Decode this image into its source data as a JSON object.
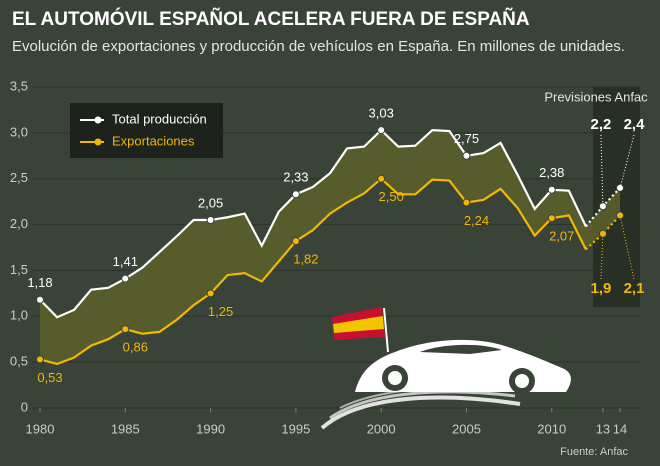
{
  "chart_data": {
    "type": "line",
    "title": "EL AUTOMÓVIL ESPAÑOL ACELERA FUERA DE ESPAÑA",
    "subtitle": "Evolución de exportaciones y producción de vehículos en España. En millones de unidades.",
    "annotation": "Previsiones Anfac",
    "source": "Fuente: Anfac",
    "x": [
      1980,
      1981,
      1982,
      1983,
      1984,
      1985,
      1986,
      1987,
      1988,
      1989,
      1990,
      1991,
      1992,
      1993,
      1994,
      1995,
      1996,
      1997,
      1998,
      1999,
      2000,
      2001,
      2002,
      2003,
      2004,
      2005,
      2006,
      2007,
      2008,
      2009,
      2010,
      2011,
      2012,
      2013,
      2014
    ],
    "series": [
      {
        "name": "Total producción",
        "color": "#ffffff",
        "values": [
          1.18,
          0.99,
          1.07,
          1.29,
          1.31,
          1.41,
          1.53,
          1.7,
          1.87,
          2.05,
          2.05,
          2.08,
          2.12,
          1.77,
          2.14,
          2.33,
          2.41,
          2.56,
          2.83,
          2.85,
          3.03,
          2.85,
          2.86,
          3.03,
          3.02,
          2.75,
          2.78,
          2.89,
          2.54,
          2.17,
          2.38,
          2.37,
          1.98,
          2.2,
          2.4
        ],
        "value_labels": [
          "1,18",
          null,
          null,
          null,
          null,
          "1,41",
          null,
          null,
          null,
          null,
          "2,05",
          null,
          null,
          null,
          null,
          "2,33",
          null,
          null,
          null,
          null,
          "3,03",
          null,
          null,
          null,
          null,
          "2,75",
          null,
          null,
          null,
          null,
          "2,38",
          null,
          null,
          "2,2",
          "2,4"
        ]
      },
      {
        "name": "Exportaciones",
        "color": "#f2b705",
        "values": [
          0.53,
          0.48,
          0.55,
          0.68,
          0.75,
          0.86,
          0.81,
          0.83,
          0.96,
          1.12,
          1.25,
          1.45,
          1.47,
          1.38,
          1.6,
          1.82,
          1.94,
          2.12,
          2.24,
          2.34,
          2.5,
          2.33,
          2.33,
          2.49,
          2.48,
          2.24,
          2.27,
          2.39,
          2.18,
          1.88,
          2.07,
          2.1,
          1.73,
          1.9,
          2.1
        ],
        "value_labels": [
          "0,53",
          null,
          null,
          null,
          null,
          "0,86",
          null,
          null,
          null,
          null,
          "1,25",
          null,
          null,
          null,
          null,
          "1,82",
          null,
          null,
          null,
          null,
          "2,50",
          null,
          null,
          null,
          null,
          "2,24",
          null,
          null,
          null,
          null,
          "2,07",
          null,
          null,
          "1,9",
          "2,1"
        ]
      }
    ],
    "xlim": [
      1980,
      2014
    ],
    "xticks": [
      1980,
      1985,
      1990,
      1995,
      2000,
      2005,
      2010,
      {
        "value": 2013,
        "label": "13"
      },
      {
        "value": 2014,
        "label": "14"
      }
    ],
    "ylim": [
      0,
      3.5
    ],
    "yticks": [
      0,
      {
        "value": 0.5,
        "label": "0,5"
      },
      {
        "value": 1,
        "label": "1,0"
      },
      {
        "value": 1.5,
        "label": "1,5"
      },
      {
        "value": 2,
        "label": "2,0"
      },
      {
        "value": 2.5,
        "label": "2,5"
      },
      {
        "value": 3,
        "label": "3,0"
      },
      {
        "value": 3.5,
        "label": "3,5"
      }
    ],
    "grid": true,
    "fill_between": "#5b5f2c"
  }
}
